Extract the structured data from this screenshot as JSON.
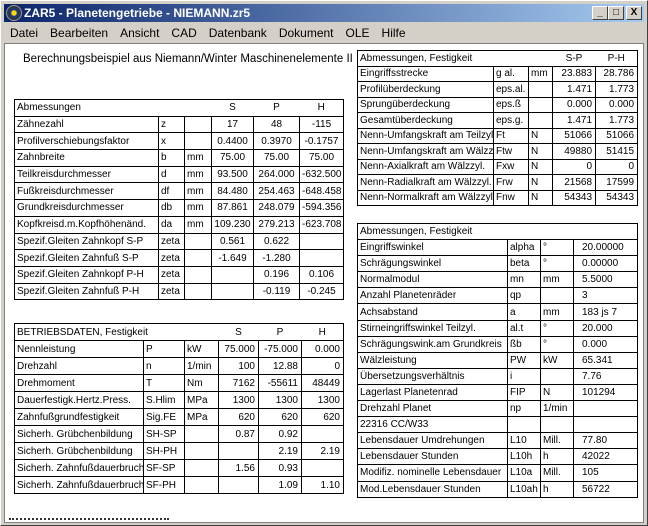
{
  "window": {
    "title": "ZAR5 - Planetengetriebe  -  NIEMANN.zr5",
    "min": "_",
    "max": "□",
    "close": "X"
  },
  "menu": [
    "Datei",
    "Bearbeiten",
    "Ansicht",
    "CAD",
    "Datenbank",
    "Dokument",
    "OLE",
    "Hilfe"
  ],
  "heading": "Berechnungsbeispiel aus Niemann/Winter Maschinenelemente II",
  "table_geometry": {
    "header": [
      "Abmessungen",
      "",
      "",
      "S",
      "P",
      "H"
    ],
    "rows": [
      [
        "Zähnezahl",
        "z",
        "",
        "17",
        "48",
        "-115"
      ],
      [
        "Profilverschiebungsfaktor",
        "x",
        "",
        "0.4400",
        "0.3970",
        "-0.1757"
      ],
      [
        "Zahnbreite",
        "b",
        "mm",
        "75.00",
        "75.00",
        "75.00"
      ],
      [
        "Teilkreisdurchmesser",
        "d",
        "mm",
        "93.500",
        "264.000",
        "-632.500"
      ],
      [
        "Fußkreisdurchmesser",
        "df",
        "mm",
        "84.480",
        "254.463",
        "-648.458"
      ],
      [
        "Grundkreisdurchmesser",
        "db",
        "mm",
        "87.861",
        "248.079",
        "-594.356"
      ],
      [
        "Kopfkreisd.m.Kopfhöhenänd.",
        "da",
        "mm",
        "109.230",
        "279.213",
        "-623.708"
      ],
      [
        "Spezif.Gleiten Zahnkopf S-P",
        "zeta",
        "",
        "0.561",
        "0.622",
        ""
      ],
      [
        "Spezif.Gleiten Zahnfuß S-P",
        "zeta",
        "",
        "-1.649",
        "-1.280",
        ""
      ],
      [
        "Spezif.Gleiten Zahnkopf P-H",
        "zeta",
        "",
        "",
        "0.196",
        "0.106"
      ],
      [
        "Spezif.Gleiten Zahnfuß P-H",
        "zeta",
        "",
        "",
        "-0.119",
        "-0.245"
      ]
    ]
  },
  "table_operation": {
    "header": [
      "BETRIEBSDATEN, Festigkeit",
      "",
      "",
      "S",
      "P",
      "H"
    ],
    "rows": [
      [
        "Nennleistung",
        "P",
        "kW",
        "75.000",
        "-75.000",
        "0.000"
      ],
      [
        "Drehzahl",
        "n",
        "1/min",
        "100",
        "12.88",
        "0"
      ],
      [
        "Drehmoment",
        "T",
        "Nm",
        "7162",
        "-55611",
        "48449"
      ],
      [
        "Dauerfestigk.Hertz.Press.",
        "S.Hlim",
        "MPa",
        "1300",
        "1300",
        "1300"
      ],
      [
        "Zahnfußgrundfestigkeit",
        "Sig.FE",
        "MPa",
        "620",
        "620",
        "620"
      ],
      [
        "Sicherh. Grübchenbildung",
        "SH-SP",
        "",
        "0.87",
        "0.92",
        ""
      ],
      [
        "Sicherh. Grübchenbildung",
        "SH-PH",
        "",
        "",
        "2.19",
        "2.19"
      ],
      [
        "Sicherh. Zahnfußdauerbruch",
        "SF-SP",
        "",
        "1.56",
        "0.93",
        ""
      ],
      [
        "Sicherh. Zahnfußdauerbruch",
        "SF-PH",
        "",
        "",
        "1.09",
        "1.10"
      ]
    ]
  },
  "table_mesh": {
    "header": [
      "Abmessungen, Festigkeit",
      "",
      "",
      "S-P",
      "P-H"
    ],
    "rows": [
      [
        "Eingriffsstrecke",
        "g al.",
        "mm",
        "23.883",
        "28.786"
      ],
      [
        "Profilüberdeckung",
        "eps.al.",
        "",
        "1.471",
        "1.773"
      ],
      [
        "Sprungüberdeckung",
        "eps.ß",
        "",
        "0.000",
        "0.000"
      ],
      [
        "Gesamtüberdeckung",
        "eps.g.",
        "",
        "1.471",
        "1.773"
      ],
      [
        "Nenn-Umfangskraft am Teilzyl.",
        "Ft",
        "N",
        "51066",
        "51066"
      ],
      [
        "Nenn-Umfangskraft am Wälzzyl.",
        "Ftw",
        "N",
        "49880",
        "51415"
      ],
      [
        "Nenn-Axialkraft am Wälzzyl.",
        "Fxw",
        "N",
        "0",
        "0"
      ],
      [
        "Nenn-Radialkraft am Wälzzyl.",
        "Frw",
        "N",
        "21568",
        "17599"
      ],
      [
        "Nenn-Normalkraft am Wälzzyl.",
        "Fnw",
        "N",
        "54343",
        "54343"
      ]
    ]
  },
  "table_general": {
    "header": [
      "Abmessungen, Festigkeit"
    ],
    "rows": [
      [
        "Eingriffswinkel",
        "alpha",
        "°",
        "20.00000"
      ],
      [
        "Schrägungswinkel",
        "beta",
        "°",
        "0.00000"
      ],
      [
        "Normalmodul",
        "mn",
        "mm",
        "5.5000"
      ],
      [
        "Anzahl Planetenräder",
        "qp",
        "",
        "3"
      ],
      [
        "Achsabstand",
        "a",
        "mm",
        "183 js 7"
      ],
      [
        "Stirneingriffswinkel Teilzyl.",
        "al.t",
        "°",
        "20.000"
      ],
      [
        "Schrägungswink.am Grundkreis",
        "ßb",
        "°",
        "0.000"
      ],
      [
        "Wälzleistung",
        "PW",
        "kW",
        "65.341"
      ],
      [
        "Übersetzungsverhältnis",
        "i",
        "",
        "7.76"
      ],
      [
        "Lagerlast Planetenrad",
        "FIP",
        "N",
        "101294"
      ],
      [
        "Drehzahl Planet",
        "np",
        "1/min",
        ""
      ],
      [
        "22316 CC/W33",
        "",
        "",
        ""
      ],
      [
        "Lebensdauer Umdrehungen",
        "L10",
        "Mill.",
        "77.80"
      ],
      [
        "Lebensdauer Stunden",
        "L10h",
        "h",
        "42022"
      ],
      [
        "Modifiz. nominelle Lebensdauer",
        "L10a",
        "Mill.",
        "105"
      ],
      [
        "Mod.Lebensdauer Stunden",
        "L10ah",
        "h",
        "56722"
      ]
    ]
  }
}
